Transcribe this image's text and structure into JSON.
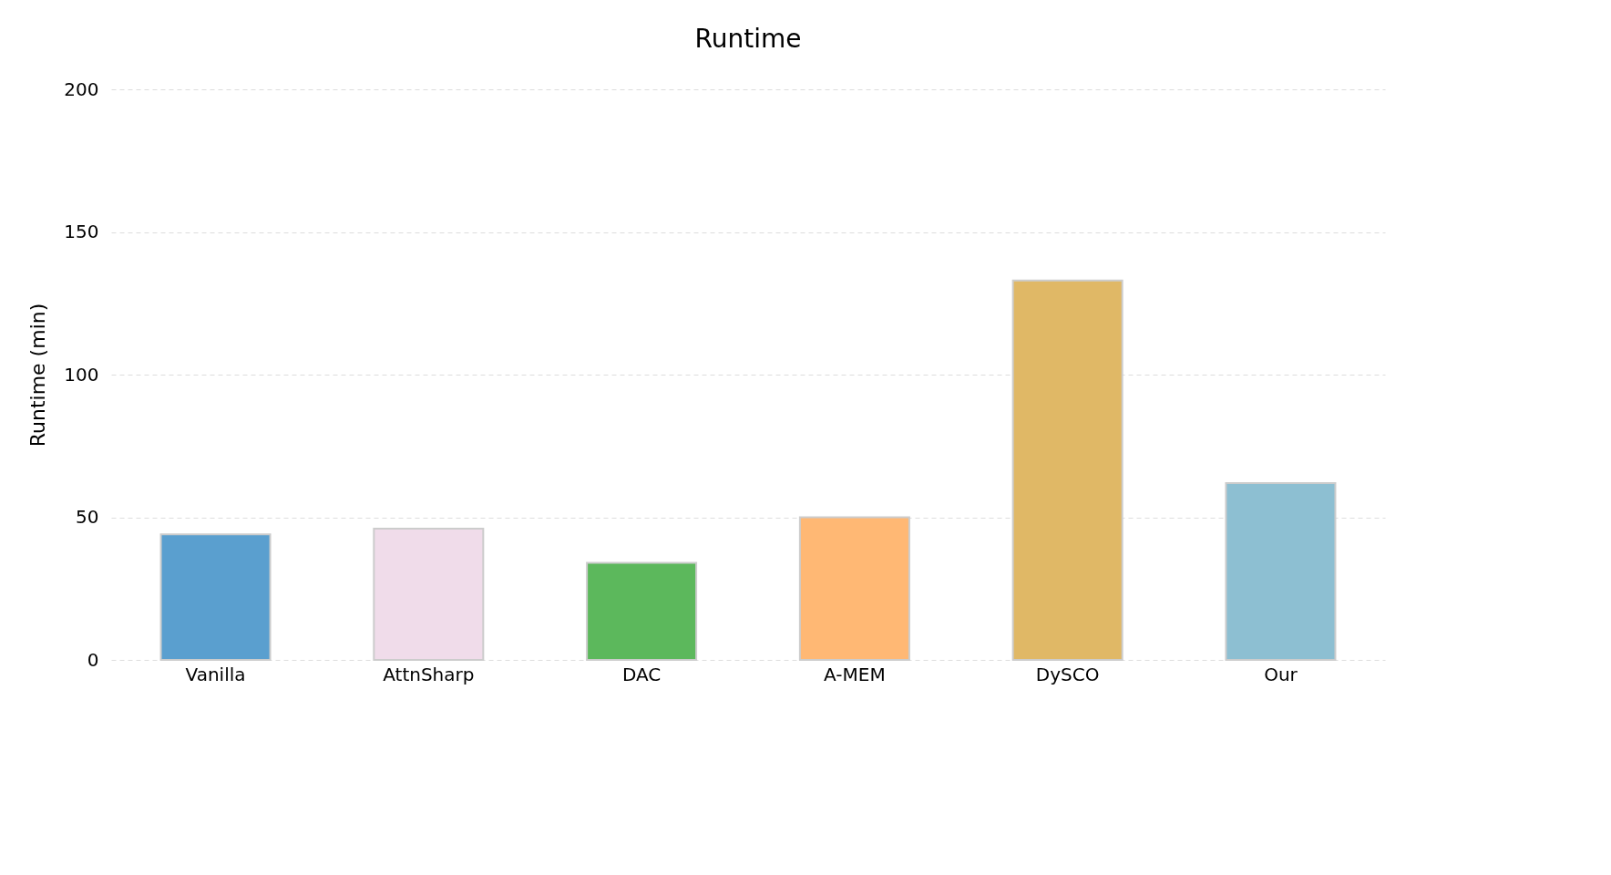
{
  "chart_data": {
    "type": "bar",
    "title": "Runtime",
    "ylabel": "Runtime (min)",
    "categories": [
      "Vanilla",
      "AttnSharp",
      "DAC",
      "A-MEM",
      "DySCO",
      "Our"
    ],
    "values": [
      44,
      46,
      34,
      50,
      133,
      62
    ],
    "colors": [
      "#5a9fcf",
      "#f0dcea",
      "#5cb85c",
      "#ffb874",
      "#e0b866",
      "#8dbfd2"
    ],
    "ylim": [
      0,
      200
    ],
    "yticks": [
      0,
      50,
      100,
      150,
      200
    ],
    "grid": "y"
  }
}
